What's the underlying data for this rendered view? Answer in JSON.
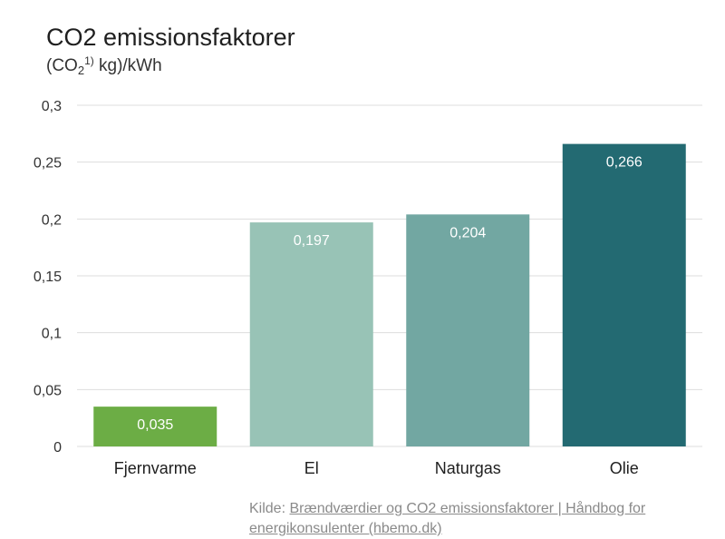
{
  "header": {
    "title": "CO2 emissionsfaktorer",
    "subtitle_open": "(CO",
    "subtitle_sub": "2",
    "subtitle_sup": "1)",
    "subtitle_close": " kg)/kWh"
  },
  "chart_data": {
    "type": "bar",
    "categories": [
      "Fjernvarme",
      "El",
      "Naturgas",
      "Olie"
    ],
    "values": [
      0.035,
      0.197,
      0.204,
      0.266
    ],
    "value_labels": [
      "0,035",
      "0,197",
      "0,204",
      "0,266"
    ],
    "colors": [
      "#6cad45",
      "#98c3b6",
      "#72a7a2",
      "#236a72"
    ],
    "ylim": [
      0,
      0.3
    ],
    "yticks": [
      0,
      0.05,
      0.1,
      0.15,
      0.2,
      0.25,
      0.3
    ],
    "ytick_labels": [
      "0",
      "0,05",
      "0,1",
      "0,15",
      "0,2",
      "0,25",
      "0,3"
    ],
    "grid": true,
    "gridline_color": "#dddddd"
  },
  "source": {
    "prefix": "Kilde: ",
    "link_text": "Brændværdier og CO2 emissionsfaktorer | Håndbog for energikonsulenter (hbemo.dk)"
  }
}
